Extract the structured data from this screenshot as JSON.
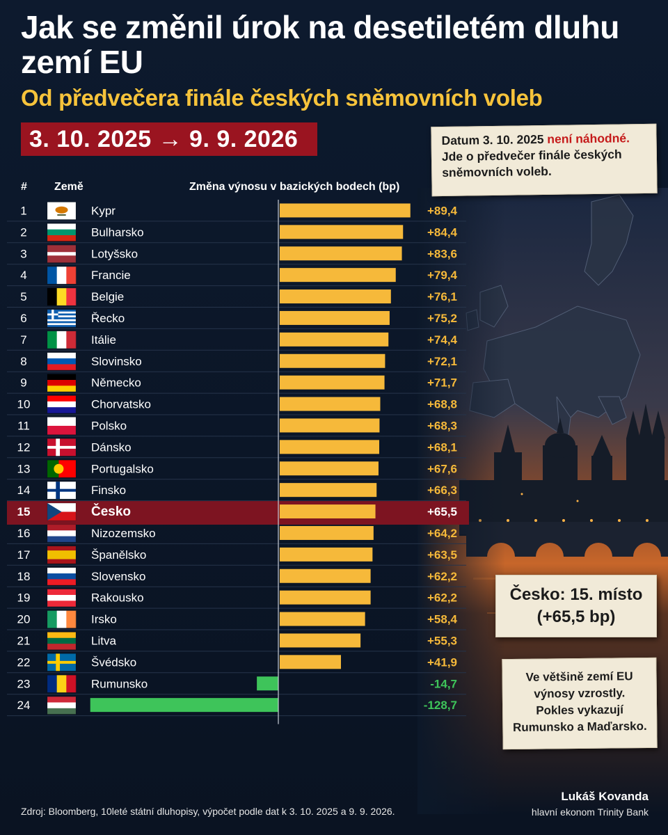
{
  "title": "Jak se změnil úrok na desetiletém dluhu zemí EU",
  "subtitle": "Od předvečera finále českých sněmovních voleb",
  "date_range": "3. 10. 2025 → 9. 9. 2026",
  "notes": {
    "top_part1": "Datum 3. 10. 2025 ",
    "top_highlight": "není náhodné.",
    "top_part2": "Jde o předvečer finále českých sněmovních voleb.",
    "rank": "Česko: 15. místo\n(+65,5 bp)",
    "summary": "Ve většině zemí EU\nvýnosy vzrostly.\nPokles vykazují\nRumunsko a Maďarsko."
  },
  "headers": {
    "rank": "#",
    "country": "Země",
    "change": "Změna výnosu v bazických bodech (bp)"
  },
  "colors": {
    "positive": "#f6b93a",
    "negative": "#3ec45a",
    "highlight_row": "#7d1421",
    "title_accent": "#f6c33b"
  },
  "chart_data": {
    "type": "bar",
    "orientation": "horizontal",
    "unit": "bp",
    "highlight": "Česko",
    "categories": [
      "Kypr",
      "Bulharsko",
      "Lotyšsko",
      "Francie",
      "Belgie",
      "Řecko",
      "Itálie",
      "Slovinsko",
      "Německo",
      "Chorvatsko",
      "Polsko",
      "Dánsko",
      "Portugalsko",
      "Finsko",
      "Česko",
      "Nizozemsko",
      "Španělsko",
      "Slovensko",
      "Rakousko",
      "Irsko",
      "Litva",
      "Švédsko",
      "Rumunsko",
      "Maďarsko"
    ],
    "ranks": [
      "1",
      "2",
      "3",
      "4",
      "5",
      "6",
      "7",
      "8",
      "9",
      "10",
      "11",
      "12",
      "13",
      "14",
      "15",
      "16",
      "17",
      "18",
      "19",
      "20",
      "21",
      "22",
      "23",
      "24"
    ],
    "values": [
      89.4,
      84.4,
      83.6,
      79.4,
      76.1,
      75.2,
      74.4,
      72.1,
      71.7,
      68.8,
      68.3,
      68.1,
      67.6,
      66.3,
      65.5,
      64.2,
      63.5,
      62.2,
      62.2,
      58.4,
      55.3,
      41.9,
      -14.7,
      -128.7
    ],
    "value_labels": [
      "+89,4",
      "+84,4",
      "+83,6",
      "+79,4",
      "+76,1",
      "+75,2",
      "+74,4",
      "+72,1",
      "+71,7",
      "+68,8",
      "+68,3",
      "+68,1",
      "+67,6",
      "+66,3",
      "+65,5",
      "+64,2",
      "+63,5",
      "+62,2",
      "+62,2",
      "+58,4",
      "+55,3",
      "+41,9",
      "-14,7",
      "-128,7"
    ],
    "flags": [
      "flag-cyprus-icon",
      "flag-bulgaria-icon",
      "flag-latvia-icon",
      "flag-france-icon",
      "flag-belgium-icon",
      "flag-greece-icon",
      "flag-italy-icon",
      "flag-slovenia-icon",
      "flag-germany-icon",
      "flag-croatia-icon",
      "flag-poland-icon",
      "flag-denmark-icon",
      "flag-portugal-icon",
      "flag-finland-icon",
      "flag-czechia-icon",
      "flag-netherlands-icon",
      "flag-spain-icon",
      "flag-slovakia-icon",
      "flag-austria-icon",
      "flag-ireland-icon",
      "flag-lithuania-icon",
      "flag-sweden-icon",
      "flag-romania-icon",
      "flag-hungary-icon"
    ]
  },
  "footer": {
    "source": "Zdroj: Bloomberg, 10leté státní dluhopisy, výpočet podle dat k 3. 10. 2025 a 9. 9. 2026.",
    "author_name": "Lukáš Kovanda",
    "author_role": "hlavní ekonom Trinity Bank"
  }
}
